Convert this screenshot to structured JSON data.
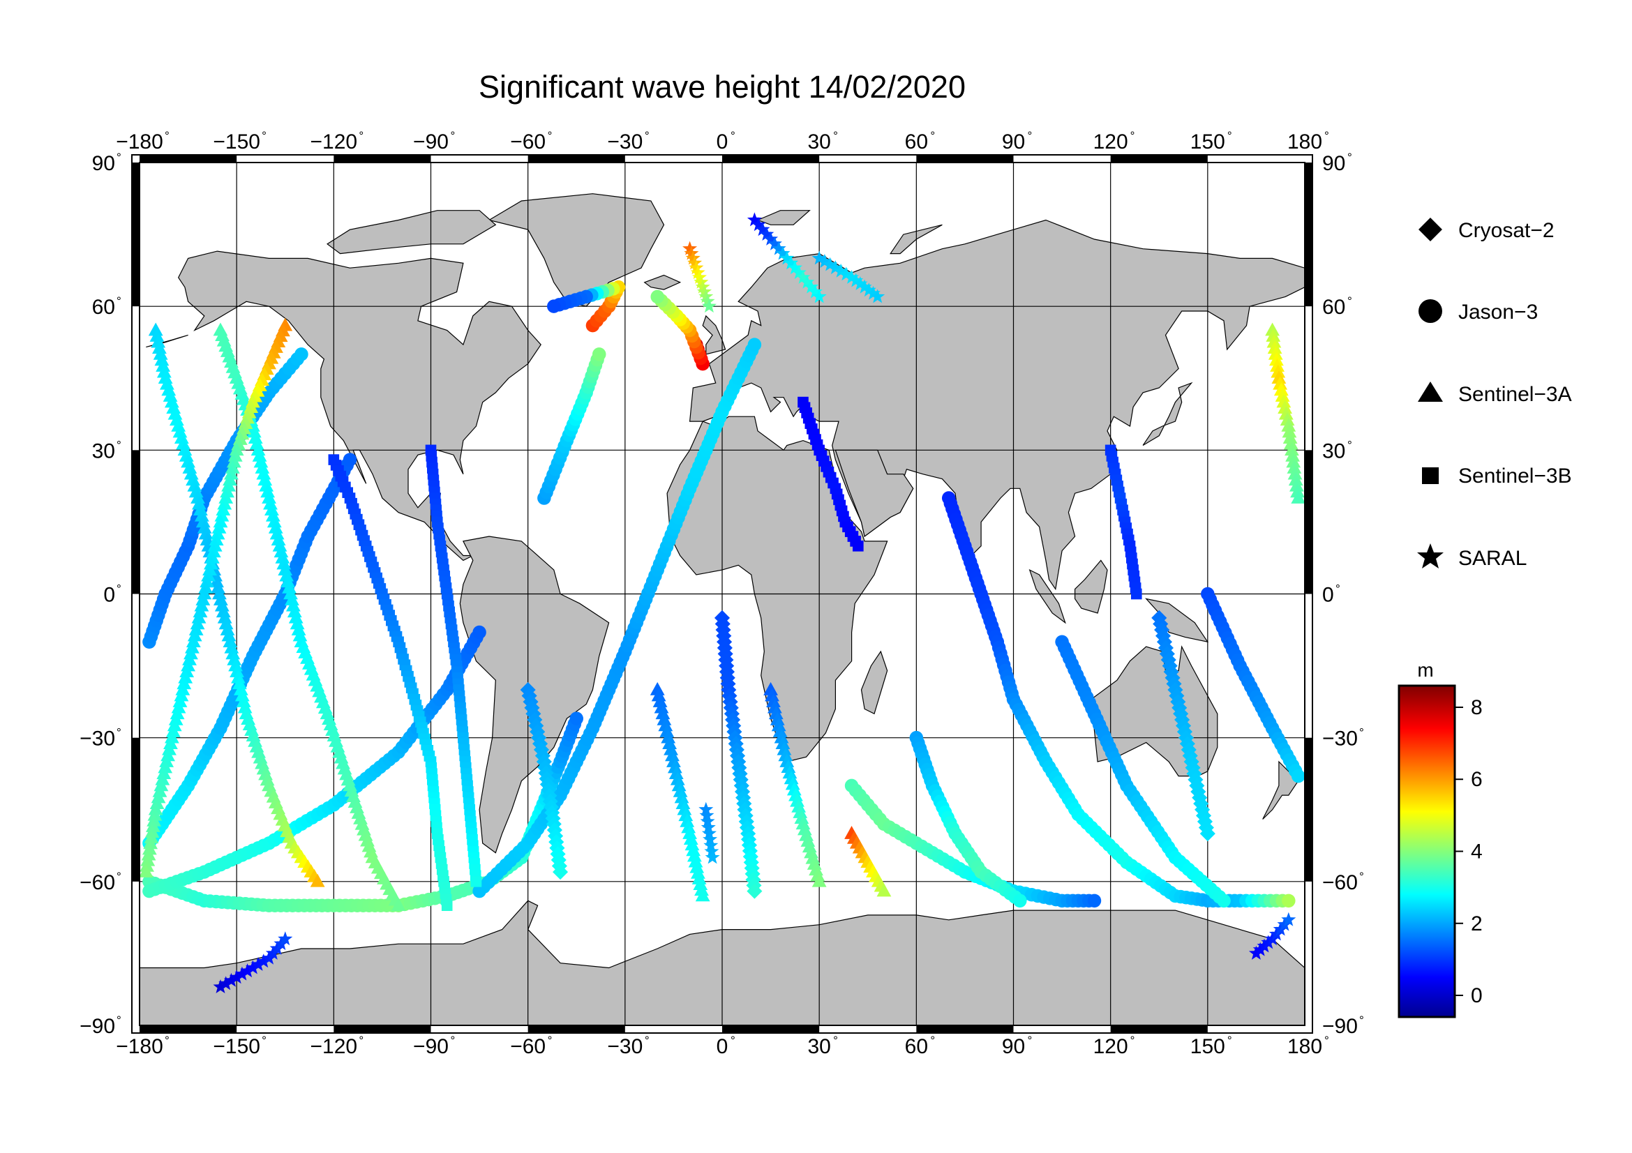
{
  "title": "Significant wave height 14/02/2020",
  "map": {
    "projection": "equirectangular",
    "lon_range": [
      -180,
      180
    ],
    "lat_range": [
      -90,
      90
    ],
    "grid": true,
    "land_color": "#bebebe",
    "ocean_color": "#ffffff",
    "frame_style": "alternating black/white 30-degree bars",
    "x_ticks": [
      "−180",
      "−150",
      "−120",
      "−90",
      "−60",
      "−30",
      "0",
      "30",
      "60",
      "90",
      "120",
      "150",
      "180"
    ],
    "y_ticks": [
      "90",
      "60",
      "30",
      "0",
      "−30",
      "−60",
      "−90"
    ],
    "degree_symbol": "°"
  },
  "legend": {
    "placement": "right",
    "items": [
      {
        "label": "Cryosat−2",
        "marker": "diamond"
      },
      {
        "label": "Jason−3",
        "marker": "circle"
      },
      {
        "label": "Sentinel−3A",
        "marker": "triangle"
      },
      {
        "label": "Sentinel−3B",
        "marker": "square"
      },
      {
        "label": "SARAL",
        "marker": "star"
      }
    ]
  },
  "colorbar": {
    "unit": "m",
    "min": -0.6,
    "max": 8.6,
    "ticks": [
      "0",
      "2",
      "4",
      "6",
      "8"
    ],
    "tick_values": [
      0,
      2,
      4,
      6,
      8
    ],
    "colormap": "jet",
    "stops": [
      "#00008f",
      "#0000ff",
      "#00ffff",
      "#ffff00",
      "#ff0000",
      "#800000"
    ]
  },
  "chart_data": {
    "type": "scatter",
    "xlabel": "",
    "ylabel": "",
    "xlim": [
      -180,
      180
    ],
    "ylim": [
      -90,
      90
    ],
    "value_unit": "m",
    "tracks": [
      {
        "satellite": "Jason−3",
        "marker": "circle",
        "points": [
          [
            -177,
            -60,
            3.5
          ],
          [
            -160,
            -64,
            3.2
          ],
          [
            -140,
            -65,
            3.6
          ],
          [
            -120,
            -65,
            3.8
          ],
          [
            -100,
            -65,
            4.0
          ],
          [
            -85,
            -63,
            3.6
          ],
          [
            -72,
            -60,
            3.5
          ],
          [
            -62,
            -55,
            3.2
          ],
          [
            -56,
            -45,
            2.8
          ],
          [
            -50,
            -35,
            2.0
          ],
          [
            -45,
            -26,
            1.6
          ]
        ]
      },
      {
        "satellite": "Jason−3",
        "marker": "circle",
        "points": [
          [
            -177,
            -62,
            3.4
          ],
          [
            -160,
            -58,
            3.2
          ],
          [
            -140,
            -52,
            3.0
          ],
          [
            -120,
            -44,
            2.6
          ],
          [
            -100,
            -33,
            2.2
          ],
          [
            -85,
            -20,
            1.7
          ],
          [
            -75,
            -8,
            1.4
          ]
        ]
      },
      {
        "satellite": "Jason−3",
        "marker": "circle",
        "points": [
          [
            -177,
            -52,
            2.8
          ],
          [
            -165,
            -40,
            2.6
          ],
          [
            -155,
            -28,
            2.2
          ],
          [
            -145,
            -13,
            2.0
          ],
          [
            -135,
            0,
            1.8
          ],
          [
            -128,
            12,
            1.6
          ],
          [
            -115,
            28,
            1.4
          ]
        ]
      },
      {
        "satellite": "Jason−3",
        "marker": "circle",
        "points": [
          [
            -177,
            -10,
            1.8
          ],
          [
            -172,
            0,
            1.6
          ],
          [
            -165,
            10,
            1.5
          ],
          [
            -160,
            20,
            1.7
          ],
          [
            -150,
            32,
            1.9
          ],
          [
            -140,
            42,
            2.1
          ],
          [
            -130,
            50,
            2.3
          ]
        ]
      },
      {
        "satellite": "Jason−3",
        "marker": "circle",
        "points": [
          [
            -75,
            -62,
            2.3
          ],
          [
            -60,
            -52,
            2.4
          ],
          [
            -50,
            -42,
            2.2
          ],
          [
            -40,
            -28,
            2.0
          ],
          [
            -30,
            -12,
            1.9
          ],
          [
            -20,
            5,
            2.2
          ],
          [
            -10,
            22,
            2.5
          ],
          [
            0,
            38,
            2.6
          ],
          [
            10,
            52,
            2.4
          ]
        ]
      },
      {
        "satellite": "Jason−3",
        "marker": "circle",
        "points": [
          [
            -55,
            20,
            2.0
          ],
          [
            -48,
            32,
            2.4
          ],
          [
            -42,
            42,
            3.2
          ],
          [
            -38,
            50,
            4.0
          ]
        ]
      },
      {
        "satellite": "Jason−3",
        "marker": "circle",
        "points": [
          [
            -40,
            56,
            6.9
          ],
          [
            -35,
            60,
            6.5
          ],
          [
            -32,
            64,
            5.5
          ],
          [
            -42,
            62,
            1.5
          ],
          [
            -52,
            60,
            1.2
          ]
        ]
      },
      {
        "satellite": "Jason−3",
        "marker": "circle",
        "points": [
          [
            -8,
            52,
            7.8
          ],
          [
            -6,
            48,
            7.5
          ],
          [
            -10,
            55,
            6.0
          ],
          [
            -14,
            58,
            5.0
          ],
          [
            -20,
            62,
            4.0
          ]
        ]
      },
      {
        "satellite": "Jason−3",
        "marker": "circle",
        "points": [
          [
            40,
            -40,
            3.5
          ],
          [
            50,
            -48,
            3.8
          ],
          [
            60,
            -52,
            3.5
          ],
          [
            75,
            -58,
            3.0
          ],
          [
            90,
            -62,
            2.6
          ],
          [
            105,
            -64,
            2.0
          ],
          [
            115,
            -64,
            1.5
          ]
        ]
      },
      {
        "satellite": "Jason−3",
        "marker": "circle",
        "points": [
          [
            60,
            -30,
            2.0
          ],
          [
            65,
            -40,
            2.4
          ],
          [
            72,
            -50,
            3.2
          ],
          [
            80,
            -58,
            3.5
          ],
          [
            92,
            -64,
            3.0
          ]
        ]
      },
      {
        "satellite": "Jason−3",
        "marker": "circle",
        "points": [
          [
            70,
            20,
            0.9
          ],
          [
            75,
            10,
            1.0
          ],
          [
            80,
            0,
            1.1
          ],
          [
            85,
            -10,
            1.3
          ],
          [
            90,
            -22,
            1.8
          ],
          [
            100,
            -35,
            2.4
          ],
          [
            110,
            -46,
            2.8
          ],
          [
            125,
            -56,
            3.0
          ],
          [
            140,
            -63,
            2.5
          ],
          [
            150,
            -64,
            2.1
          ],
          [
            160,
            -64,
            2.3
          ],
          [
            175,
            -64,
            4.4
          ]
        ]
      },
      {
        "satellite": "Jason−3",
        "marker": "circle",
        "points": [
          [
            105,
            -10,
            1.6
          ],
          [
            115,
            -25,
            1.8
          ],
          [
            125,
            -40,
            2.2
          ],
          [
            140,
            -55,
            2.8
          ],
          [
            155,
            -64,
            3.0
          ]
        ]
      },
      {
        "satellite": "Jason−3",
        "marker": "circle",
        "points": [
          [
            150,
            0,
            1.2
          ],
          [
            160,
            -15,
            1.6
          ],
          [
            170,
            -28,
            2.0
          ],
          [
            178,
            -38,
            2.5
          ]
        ]
      },
      {
        "satellite": "Sentinel−3A",
        "marker": "triangle",
        "points": [
          [
            -175,
            55,
            2.5
          ],
          [
            -172,
            45,
            2.7
          ],
          [
            -168,
            35,
            2.8
          ],
          [
            -162,
            20,
            2.5
          ],
          [
            -157,
            5,
            2.2
          ],
          [
            -152,
            -10,
            2.5
          ],
          [
            -147,
            -25,
            3.0
          ],
          [
            -140,
            -40,
            3.8
          ],
          [
            -133,
            -52,
            4.5
          ],
          [
            -125,
            -60,
            5.8
          ]
        ]
      },
      {
        "satellite": "Sentinel−3A",
        "marker": "triangle",
        "points": [
          [
            -155,
            55,
            3.5
          ],
          [
            -150,
            45,
            3.4
          ],
          [
            -145,
            35,
            3.0
          ],
          [
            -140,
            20,
            2.8
          ],
          [
            -135,
            5,
            2.6
          ],
          [
            -130,
            -10,
            2.8
          ],
          [
            -122,
            -25,
            3.2
          ],
          [
            -115,
            -40,
            3.5
          ],
          [
            -108,
            -55,
            4.0
          ],
          [
            -100,
            -65,
            3.8
          ]
        ]
      },
      {
        "satellite": "Sentinel−3A",
        "marker": "triangle",
        "points": [
          [
            -135,
            56,
            6.2
          ],
          [
            -140,
            48,
            5.8
          ],
          [
            -145,
            40,
            4.8
          ],
          [
            -150,
            30,
            3.6
          ],
          [
            -155,
            15,
            2.8
          ],
          [
            -160,
            0,
            2.5
          ],
          [
            -165,
            -15,
            2.7
          ],
          [
            -170,
            -30,
            3.0
          ],
          [
            -175,
            -45,
            3.5
          ],
          [
            -178,
            -58,
            4.0
          ]
        ]
      },
      {
        "satellite": "Sentinel−3A",
        "marker": "triangle",
        "points": [
          [
            -20,
            -20,
            1.5
          ],
          [
            -15,
            -35,
            2.0
          ],
          [
            -10,
            -50,
            2.8
          ],
          [
            -6,
            -63,
            3.0
          ]
        ]
      },
      {
        "satellite": "Sentinel−3A",
        "marker": "triangle",
        "points": [
          [
            15,
            -20,
            1.4
          ],
          [
            20,
            -35,
            2.2
          ],
          [
            25,
            -48,
            3.5
          ],
          [
            30,
            -60,
            4.0
          ]
        ]
      },
      {
        "satellite": "Sentinel−3A",
        "marker": "triangle",
        "points": [
          [
            40,
            -50,
            6.8
          ],
          [
            45,
            -56,
            5.5
          ],
          [
            50,
            -62,
            4.5
          ]
        ]
      },
      {
        "satellite": "Sentinel−3A",
        "marker": "triangle",
        "points": [
          [
            170,
            55,
            4.5
          ],
          [
            172,
            45,
            5.5
          ],
          [
            175,
            35,
            4.2
          ],
          [
            178,
            20,
            3.5
          ]
        ]
      },
      {
        "satellite": "Sentinel−3B",
        "marker": "square",
        "points": [
          [
            -120,
            28,
            1.0
          ],
          [
            -115,
            20,
            1.1
          ],
          [
            -110,
            10,
            1.3
          ],
          [
            -105,
            0,
            1.5
          ],
          [
            -100,
            -10,
            1.8
          ],
          [
            -95,
            -22,
            2.2
          ],
          [
            -90,
            -35,
            2.6
          ],
          [
            -88,
            -50,
            3.0
          ],
          [
            -85,
            -65,
            3.2
          ]
        ]
      },
      {
        "satellite": "Sentinel−3B",
        "marker": "square",
        "points": [
          [
            -90,
            30,
            0.9
          ],
          [
            -88,
            15,
            1.2
          ],
          [
            -85,
            0,
            1.4
          ],
          [
            -82,
            -15,
            1.7
          ],
          [
            -80,
            -30,
            2.2
          ],
          [
            -78,
            -45,
            2.6
          ],
          [
            -76,
            -60,
            3.0
          ]
        ]
      },
      {
        "satellite": "Sentinel−3B",
        "marker": "square",
        "points": [
          [
            25,
            40,
            0.5
          ],
          [
            30,
            30,
            0.6
          ],
          [
            35,
            22,
            0.7
          ],
          [
            38,
            15,
            0.6
          ],
          [
            42,
            10,
            0.5
          ]
        ]
      },
      {
        "satellite": "Sentinel−3B",
        "marker": "square",
        "points": [
          [
            120,
            30,
            1.0
          ],
          [
            123,
            20,
            1.2
          ],
          [
            126,
            10,
            0.9
          ],
          [
            128,
            0,
            1.0
          ]
        ]
      },
      {
        "satellite": "Cryosat−2",
        "marker": "diamond",
        "points": [
          [
            -60,
            -20,
            1.8
          ],
          [
            -55,
            -35,
            2.2
          ],
          [
            -52,
            -48,
            2.6
          ],
          [
            -50,
            -58,
            3.0
          ]
        ]
      },
      {
        "satellite": "Cryosat−2",
        "marker": "diamond",
        "points": [
          [
            0,
            -5,
            1.2
          ],
          [
            2,
            -20,
            1.3
          ],
          [
            5,
            -35,
            2.0
          ],
          [
            8,
            -50,
            2.6
          ],
          [
            10,
            -62,
            3.2
          ]
        ]
      },
      {
        "satellite": "Cryosat−2",
        "marker": "diamond",
        "points": [
          [
            135,
            -5,
            1.6
          ],
          [
            140,
            -20,
            2.0
          ],
          [
            145,
            -35,
            2.4
          ],
          [
            150,
            -50,
            2.6
          ]
        ]
      },
      {
        "satellite": "SARAL",
        "marker": "star",
        "points": [
          [
            -155,
            -82,
            0.2
          ],
          [
            -150,
            -80,
            0.4
          ],
          [
            -145,
            -78,
            0.6
          ],
          [
            -140,
            -76,
            0.8
          ],
          [
            -135,
            -72,
            1.2
          ]
        ]
      },
      {
        "satellite": "SARAL",
        "marker": "star",
        "points": [
          [
            10,
            78,
            0.6
          ],
          [
            15,
            74,
            1.2
          ],
          [
            20,
            70,
            2.5
          ],
          [
            25,
            66,
            3.2
          ],
          [
            30,
            62,
            2.8
          ]
        ]
      },
      {
        "satellite": "SARAL",
        "marker": "star",
        "points": [
          [
            -10,
            72,
            6.5
          ],
          [
            -8,
            68,
            5.5
          ],
          [
            -6,
            64,
            4.6
          ],
          [
            -4,
            60,
            3.8
          ]
        ]
      },
      {
        "satellite": "SARAL",
        "marker": "star",
        "points": [
          [
            30,
            70,
            2.2
          ],
          [
            40,
            66,
            2.6
          ],
          [
            48,
            62,
            2.4
          ]
        ]
      },
      {
        "satellite": "SARAL",
        "marker": "star",
        "points": [
          [
            165,
            -75,
            0.5
          ],
          [
            170,
            -72,
            0.8
          ],
          [
            175,
            -68,
            1.5
          ]
        ]
      },
      {
        "satellite": "SARAL",
        "marker": "star",
        "points": [
          [
            -5,
            -45,
            1.8
          ],
          [
            -3,
            -55,
            2.2
          ]
        ]
      }
    ]
  }
}
